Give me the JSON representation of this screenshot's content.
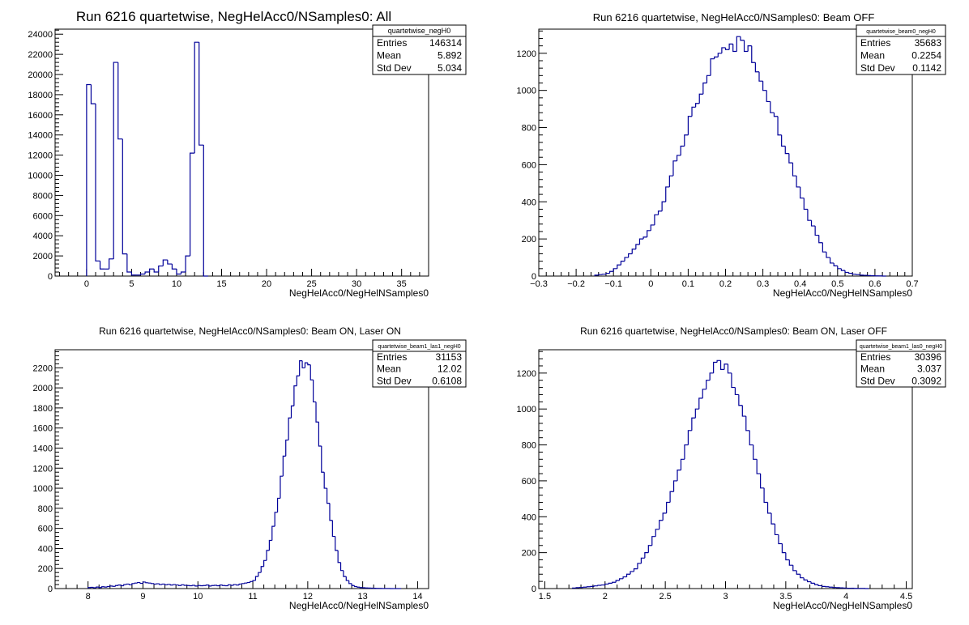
{
  "colors": {
    "histogram_line": "#000099",
    "axis": "#000000",
    "background": "#ffffff"
  },
  "chart_data": [
    {
      "type": "histogram",
      "title": "Run 6216 quartetwise, NegHelAcc0/NSamples0: All",
      "xlabel": "NegHelAcc0/NegHelNSamples0",
      "ylabel": "",
      "xlim": [
        -3.5,
        38
      ],
      "ylim": [
        0,
        24500
      ],
      "xticks": [
        0,
        5,
        10,
        15,
        20,
        25,
        30,
        35
      ],
      "yticks": [
        0,
        2000,
        4000,
        6000,
        8000,
        10000,
        12000,
        14000,
        16000,
        18000,
        20000,
        22000,
        24000
      ],
      "bin_width": 0.5,
      "x": [
        0.0,
        0.5,
        1.0,
        1.5,
        2.0,
        2.5,
        3.0,
        3.5,
        4.0,
        4.5,
        5.0,
        5.5,
        6.0,
        6.5,
        7.0,
        7.5,
        8.0,
        8.5,
        9.0,
        9.5,
        10.0,
        10.5,
        11.0,
        11.5,
        12.0,
        12.5,
        13.0
      ],
      "values": [
        19000,
        17100,
        1500,
        700,
        700,
        1700,
        21200,
        13600,
        2200,
        400,
        100,
        100,
        200,
        400,
        700,
        400,
        1000,
        1600,
        1200,
        700,
        200,
        400,
        2000,
        12200,
        23200,
        13000,
        0
      ],
      "stats": {
        "name": "quartetwise_negH0",
        "entries_label": "Entries",
        "entries": "146314",
        "mean_label": "Mean",
        "mean": "5.892",
        "std_label": "Std Dev",
        "std": "5.034"
      }
    },
    {
      "type": "histogram",
      "title": "Run 6216 quartetwise, NegHelAcc0/NSamples0: Beam OFF",
      "xlabel": "NegHelAcc0/NegHelNSamples0",
      "ylabel": "",
      "xlim": [
        -0.3,
        0.7
      ],
      "ylim": [
        0,
        1330
      ],
      "xticks": [
        -0.3,
        -0.2,
        -0.1,
        0,
        0.1,
        0.2,
        0.3,
        0.4,
        0.5,
        0.6,
        0.7
      ],
      "yticks": [
        0,
        200,
        400,
        600,
        800,
        1000,
        1200
      ],
      "bin_width": 0.01,
      "x": [
        -0.15,
        -0.14,
        -0.13,
        -0.12,
        -0.11,
        -0.1,
        -0.09,
        -0.08,
        -0.07,
        -0.06,
        -0.05,
        -0.04,
        -0.03,
        -0.02,
        -0.01,
        0.0,
        0.01,
        0.02,
        0.03,
        0.04,
        0.05,
        0.06,
        0.07,
        0.08,
        0.09,
        0.1,
        0.11,
        0.12,
        0.13,
        0.14,
        0.15,
        0.16,
        0.17,
        0.18,
        0.19,
        0.2,
        0.21,
        0.22,
        0.23,
        0.24,
        0.25,
        0.26,
        0.27,
        0.28,
        0.29,
        0.3,
        0.31,
        0.32,
        0.33,
        0.34,
        0.35,
        0.36,
        0.37,
        0.38,
        0.39,
        0.4,
        0.41,
        0.42,
        0.43,
        0.44,
        0.45,
        0.46,
        0.47,
        0.48,
        0.49,
        0.5,
        0.51,
        0.52,
        0.53,
        0.54,
        0.55,
        0.56,
        0.57,
        0.58,
        0.59,
        0.6,
        0.61,
        0.62
      ],
      "values": [
        5,
        8,
        10,
        15,
        25,
        40,
        60,
        80,
        100,
        120,
        145,
        170,
        200,
        210,
        245,
        275,
        330,
        350,
        400,
        480,
        540,
        620,
        650,
        700,
        760,
        860,
        910,
        930,
        980,
        1040,
        1080,
        1170,
        1180,
        1200,
        1230,
        1220,
        1250,
        1210,
        1290,
        1270,
        1210,
        1240,
        1150,
        1100,
        1050,
        1000,
        940,
        880,
        860,
        760,
        700,
        660,
        610,
        540,
        480,
        420,
        360,
        300,
        270,
        220,
        180,
        130,
        100,
        70,
        55,
        40,
        30,
        20,
        15,
        10,
        8,
        5,
        4,
        3,
        2,
        1,
        1,
        0
      ],
      "stats": {
        "name": "quartetwise_beam0_negH0",
        "entries_label": "Entries",
        "entries": "35683",
        "mean_label": "Mean",
        "mean": "0.2254",
        "std_label": "Std Dev",
        "std": "0.1142"
      }
    },
    {
      "type": "histogram",
      "title": "Run 6216 quartetwise, NegHelAcc0/NSamples0: Beam ON, Laser ON",
      "xlabel": "NegHelAcc0/NegHelNSamples0",
      "ylabel": "",
      "xlim": [
        7.4,
        14.2
      ],
      "ylim": [
        0,
        2380
      ],
      "xticks": [
        8,
        9,
        10,
        11,
        12,
        13,
        14
      ],
      "yticks": [
        0,
        200,
        400,
        600,
        800,
        1000,
        1200,
        1400,
        1600,
        1800,
        2000,
        2200
      ],
      "bin_width": 0.05,
      "x": [
        8.0,
        8.05,
        8.1,
        8.15,
        8.2,
        8.25,
        8.3,
        8.35,
        8.4,
        8.45,
        8.5,
        8.55,
        8.6,
        8.65,
        8.7,
        8.75,
        8.8,
        8.85,
        8.9,
        8.95,
        9.0,
        9.05,
        9.1,
        9.15,
        9.2,
        9.25,
        9.3,
        9.35,
        9.4,
        9.45,
        9.5,
        9.55,
        9.6,
        9.65,
        9.7,
        9.75,
        9.8,
        9.85,
        9.9,
        9.95,
        10.0,
        10.05,
        10.1,
        10.15,
        10.2,
        10.25,
        10.3,
        10.35,
        10.4,
        10.45,
        10.5,
        10.55,
        10.6,
        10.65,
        10.7,
        10.75,
        10.8,
        10.85,
        10.9,
        10.95,
        11.0,
        11.05,
        11.1,
        11.15,
        11.2,
        11.25,
        11.3,
        11.35,
        11.4,
        11.45,
        11.5,
        11.55,
        11.6,
        11.65,
        11.7,
        11.75,
        11.8,
        11.85,
        11.9,
        11.95,
        12.0,
        12.05,
        12.1,
        12.15,
        12.2,
        12.25,
        12.3,
        12.35,
        12.4,
        12.45,
        12.5,
        12.55,
        12.6,
        12.65,
        12.7,
        12.75,
        12.8,
        12.85,
        12.9,
        12.95,
        13.0,
        13.05,
        13.1,
        13.15,
        13.2,
        13.25,
        13.3,
        13.35,
        13.4,
        13.45,
        13.5,
        13.55,
        13.6,
        13.65
      ],
      "values": [
        10,
        12,
        8,
        15,
        10,
        18,
        15,
        20,
        25,
        22,
        30,
        35,
        28,
        40,
        45,
        38,
        50,
        55,
        60,
        52,
        65,
        58,
        55,
        50,
        45,
        48,
        40,
        45,
        38,
        42,
        35,
        40,
        36,
        30,
        38,
        32,
        30,
        28,
        32,
        25,
        30,
        28,
        30,
        35,
        25,
        30,
        32,
        28,
        35,
        30,
        28,
        38,
        32,
        40,
        35,
        45,
        50,
        55,
        60,
        70,
        80,
        120,
        160,
        220,
        280,
        380,
        480,
        620,
        760,
        900,
        1120,
        1320,
        1480,
        1700,
        1820,
        2020,
        2120,
        2270,
        2200,
        2250,
        2230,
        2080,
        1860,
        1660,
        1420,
        1160,
        1000,
        850,
        680,
        520,
        380,
        260,
        180,
        120,
        80,
        50,
        30,
        20,
        14,
        10,
        8,
        6,
        5,
        4,
        3,
        2,
        2,
        1,
        1,
        1,
        0,
        0,
        0,
        0
      ],
      "stats": {
        "name": "quartetwise_beam1_las1_negH0",
        "entries_label": "Entries",
        "entries": "31153",
        "mean_label": "Mean",
        "mean": "12.02",
        "std_label": "Std Dev",
        "std": "0.6108"
      }
    },
    {
      "type": "histogram",
      "title": "Run 6216 quartetwise, NegHelAcc0/NSamples0: Beam ON, Laser OFF",
      "xlabel": "NegHelAcc0/NegHelNSamples0",
      "ylabel": "",
      "xlim": [
        1.45,
        4.55
      ],
      "ylim": [
        0,
        1330
      ],
      "xticks": [
        1.5,
        2,
        2.5,
        3,
        3.5,
        4,
        4.5
      ],
      "yticks": [
        0,
        200,
        400,
        600,
        800,
        1000,
        1200
      ],
      "bin_width": 0.03,
      "x": [
        1.73,
        1.76,
        1.79,
        1.82,
        1.85,
        1.88,
        1.91,
        1.94,
        1.97,
        2.0,
        2.03,
        2.06,
        2.09,
        2.12,
        2.15,
        2.18,
        2.21,
        2.24,
        2.27,
        2.3,
        2.33,
        2.36,
        2.39,
        2.42,
        2.45,
        2.48,
        2.51,
        2.54,
        2.57,
        2.6,
        2.63,
        2.66,
        2.69,
        2.72,
        2.75,
        2.78,
        2.81,
        2.84,
        2.87,
        2.9,
        2.93,
        2.96,
        2.99,
        3.02,
        3.05,
        3.08,
        3.11,
        3.14,
        3.17,
        3.2,
        3.23,
        3.26,
        3.29,
        3.32,
        3.35,
        3.38,
        3.41,
        3.44,
        3.47,
        3.5,
        3.53,
        3.56,
        3.59,
        3.62,
        3.65,
        3.68,
        3.71,
        3.74,
        3.77,
        3.8,
        3.83,
        3.86,
        3.89,
        3.92,
        3.95,
        3.98,
        4.01,
        4.04,
        4.07,
        4.1,
        4.13,
        4.16
      ],
      "values": [
        3,
        5,
        6,
        8,
        10,
        12,
        15,
        18,
        20,
        25,
        30,
        35,
        45,
        55,
        65,
        80,
        95,
        110,
        140,
        170,
        200,
        240,
        290,
        330,
        380,
        420,
        480,
        540,
        600,
        660,
        720,
        800,
        880,
        950,
        1000,
        1060,
        1110,
        1160,
        1200,
        1260,
        1270,
        1220,
        1250,
        1200,
        1120,
        1080,
        1020,
        960,
        880,
        800,
        720,
        640,
        560,
        480,
        420,
        360,
        300,
        250,
        200,
        160,
        130,
        100,
        80,
        60,
        48,
        38,
        30,
        22,
        16,
        12,
        10,
        8,
        6,
        5,
        4,
        3,
        2,
        2,
        1,
        1,
        1,
        0
      ],
      "stats": {
        "name": "quartetwise_beam1_las0_negH0",
        "entries_label": "Entries",
        "entries": "30396",
        "mean_label": "Mean",
        "mean": "3.037",
        "std_label": "Std Dev",
        "std": "0.3092"
      }
    }
  ]
}
